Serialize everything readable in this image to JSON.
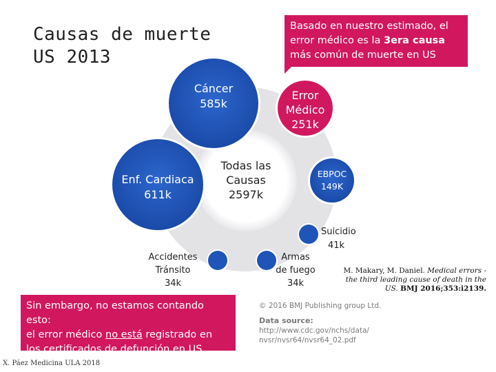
{
  "title": {
    "line1": "Causas de muerte",
    "line2": "US 2013"
  },
  "callout": {
    "text_before": "Basado en nuestro estimado, el error médico es la ",
    "text_bold": "3era causa",
    "text_after": " más común de muerte en US"
  },
  "bubbles": {
    "cancer": {
      "name": "Cáncer",
      "value": "585k"
    },
    "cardiaca": {
      "name": "Enf. Cardiaca",
      "value": "611k"
    },
    "total": {
      "line1": "Todas las",
      "line2": "Causas",
      "value": "2597k"
    },
    "error": {
      "line1": "Error",
      "line2": "Médico",
      "value": "251k"
    },
    "epoc": {
      "name": "EBPOC",
      "value": "149K"
    },
    "accidentes": {
      "line1": "Accidentes",
      "line2": "Tránsito",
      "value": "34k"
    },
    "armas": {
      "line1": "Armas",
      "line2": "de fuego",
      "value": "34k"
    },
    "suicidio": {
      "name": "Suicidio",
      "value": "41k"
    }
  },
  "bottom_note": {
    "line1": "Sin embargo, no estamos contando esto:",
    "line2_before": "el error médico ",
    "line2_underlined": "no está",
    "line2_after": " registrado en",
    "line3": "los certificados de defunción en US"
  },
  "copyright": {
    "line1": "© 2016 BMJ Publishing group Ltd.",
    "head": "Data source:",
    "line2": "http://www.cdc.gov/nchs/data/",
    "line3": "nvsr/nvsr64/nvsr64_02.pdf"
  },
  "reference": {
    "authors": "M. Makary, M. Daniel.",
    "title_italic": "Medical errors - the third leading cause of death in the US.",
    "journal": "BMJ 2016;353:i2139."
  },
  "footer": "X. Páez Medicina ULA 2018",
  "colors": {
    "blue": "#1f55b8",
    "blue_light": "#2f6fd6",
    "pink": "#d1185f",
    "grey_circle": "#e3e3e6"
  }
}
